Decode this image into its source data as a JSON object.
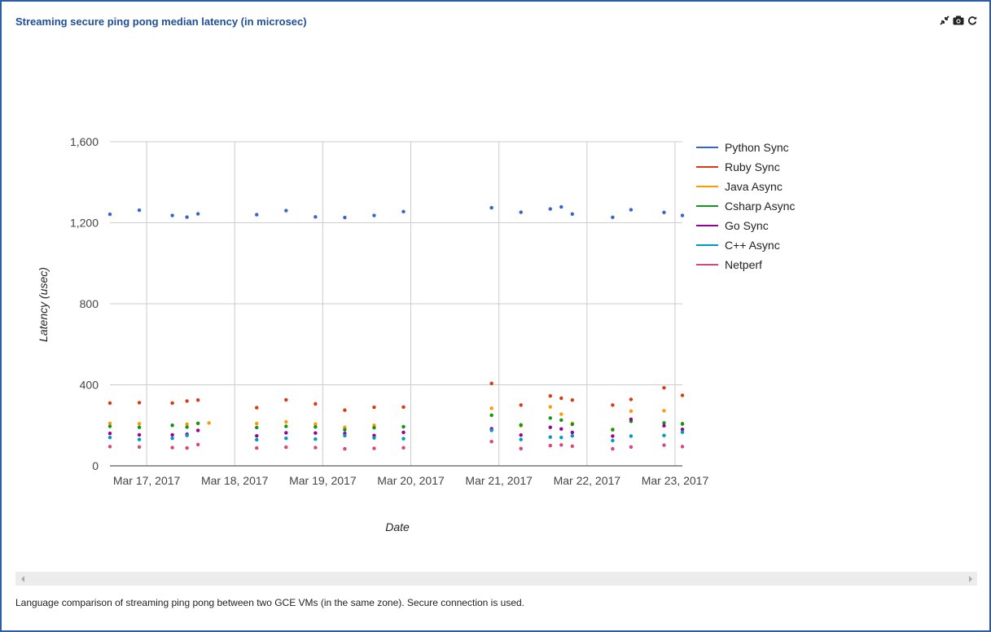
{
  "panel": {
    "title": "Streaming secure ping pong median latency (in microsec)",
    "caption": "Language comparison of streaming ping pong between two GCE VMs (in the same zone). Secure connection is used.",
    "icons": [
      "collapse-icon",
      "camera-icon",
      "refresh-icon"
    ]
  },
  "chart_data": {
    "type": "scatter",
    "title": "",
    "xlabel": "Date",
    "ylabel": "Latency (usec)",
    "x_axis": "date",
    "xlim": [
      "2017-03-16T14:00",
      "2017-03-23T02:00"
    ],
    "x_ticks": [
      "Mar 17, 2017",
      "Mar 18, 2017",
      "Mar 19, 2017",
      "Mar 20, 2017",
      "Mar 21, 2017",
      "Mar 22, 2017",
      "Mar 23, 2017"
    ],
    "ylim": [
      0,
      1600
    ],
    "y_ticks": [
      "0",
      "400",
      "800",
      "1,200",
      "1,600"
    ],
    "grid": true,
    "legend_position": "right",
    "x": [
      "2017-03-16T14:00",
      "2017-03-16T22:00",
      "2017-03-17T07:00",
      "2017-03-17T11:00",
      "2017-03-17T14:00",
      "2017-03-17T17:00",
      "2017-03-18T06:00",
      "2017-03-18T14:00",
      "2017-03-18T22:00",
      "2017-03-19T06:00",
      "2017-03-19T14:00",
      "2017-03-19T22:00",
      "2017-03-20T22:00",
      "2017-03-21T06:00",
      "2017-03-21T14:00",
      "2017-03-21T17:00",
      "2017-03-21T20:00",
      "2017-03-22T07:00",
      "2017-03-22T12:00",
      "2017-03-22T21:00",
      "2017-03-23T02:00"
    ],
    "series": [
      {
        "name": "Python Sync",
        "color": "#3366cc",
        "values": [
          1242,
          1262,
          1236,
          1228,
          1244,
          null,
          1240,
          1260,
          1229,
          1226,
          1236,
          1255,
          1274,
          1252,
          1268,
          1278,
          1243,
          1227,
          1264,
          1251,
          1236
        ]
      },
      {
        "name": "Ruby Sync",
        "color": "#dc3912",
        "values": [
          310,
          312,
          310,
          320,
          325,
          null,
          287,
          326,
          306,
          275,
          289,
          290,
          407,
          300,
          345,
          334,
          325,
          300,
          328,
          385,
          348
        ]
      },
      {
        "name": "Java Async",
        "color": "#ff9900",
        "values": [
          210,
          208,
          200,
          206,
          210,
          212,
          209,
          217,
          206,
          190,
          200,
          193,
          284,
          198,
          291,
          255,
          210,
          180,
          270,
          272,
          206
        ]
      },
      {
        "name": "Csharp Async",
        "color": "#109618",
        "values": [
          195,
          190,
          200,
          191,
          210,
          null,
          189,
          195,
          192,
          178,
          188,
          193,
          250,
          202,
          236,
          226,
          205,
          178,
          220,
          212,
          208
        ]
      },
      {
        "name": "Go Sync",
        "color": "#990099",
        "values": [
          160,
          153,
          153,
          156,
          175,
          null,
          148,
          163,
          162,
          160,
          150,
          165,
          183,
          152,
          190,
          182,
          165,
          147,
          230,
          198,
          180
        ]
      },
      {
        "name": "C++ Async",
        "color": "#0099c6",
        "values": [
          140,
          130,
          136,
          150,
          null,
          null,
          129,
          136,
          132,
          149,
          138,
          134,
          175,
          130,
          142,
          140,
          148,
          125,
          147,
          150,
          166
        ]
      },
      {
        "name": "Netperf",
        "color": "#dd4477",
        "values": [
          95,
          93,
          90,
          88,
          105,
          null,
          88,
          92,
          90,
          84,
          86,
          89,
          120,
          85,
          100,
          103,
          97,
          84,
          93,
          102,
          95
        ]
      }
    ]
  }
}
